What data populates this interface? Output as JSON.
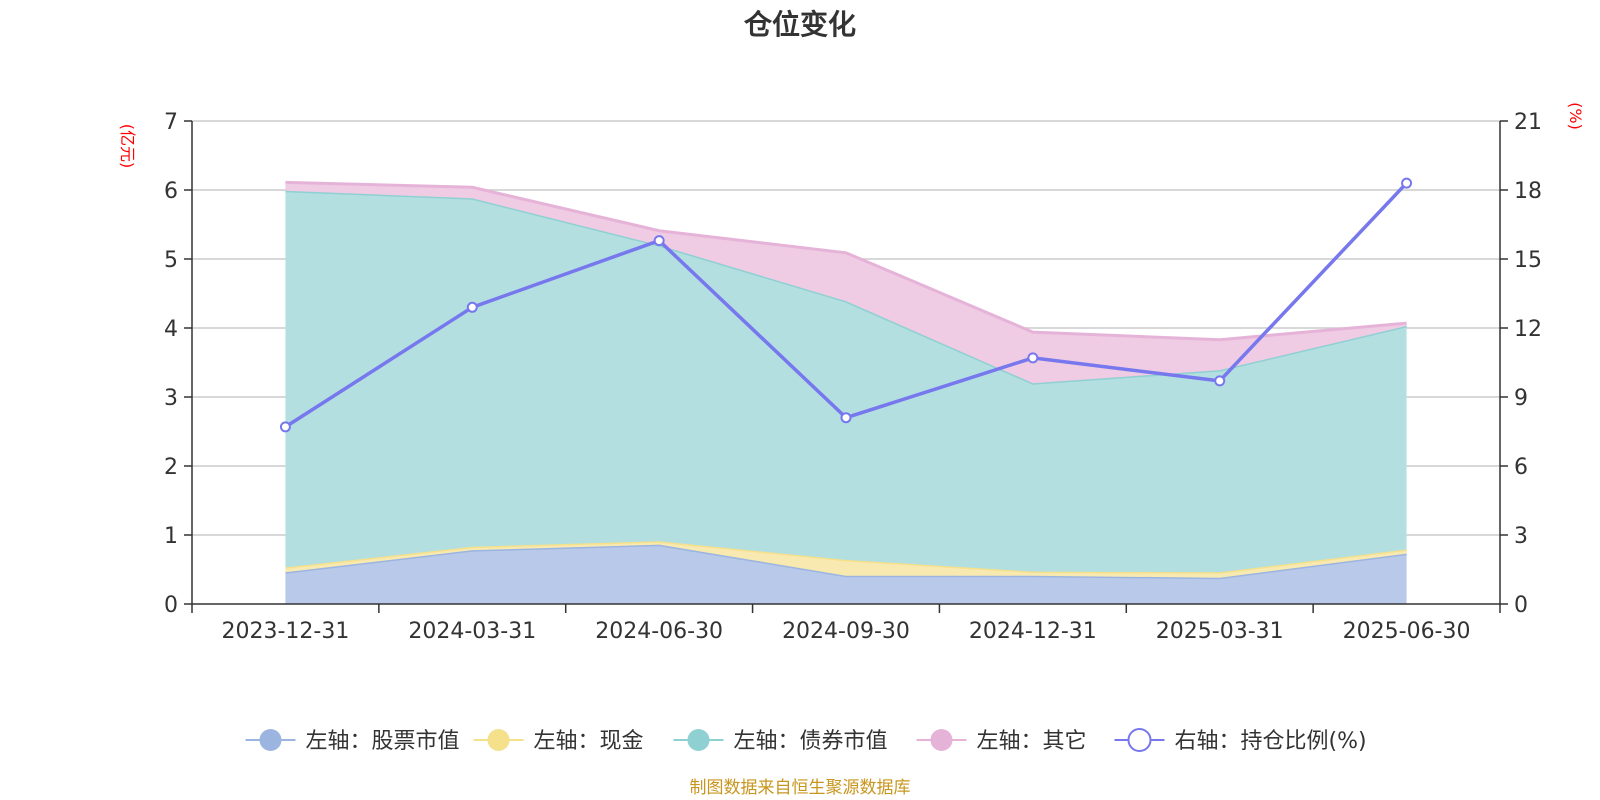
{
  "chart_data": {
    "type": "area",
    "title": "仓位变化",
    "left_axis_unit": "(亿元)",
    "right_axis_unit": "(%)",
    "categories": [
      "2023-12-31",
      "2024-03-31",
      "2024-06-30",
      "2024-09-30",
      "2024-12-31",
      "2025-03-31",
      "2025-06-30"
    ],
    "left_ylim": [
      0,
      7
    ],
    "left_yticks": [
      0,
      1,
      2,
      3,
      4,
      5,
      6,
      7
    ],
    "right_ylim": [
      0,
      21
    ],
    "right_yticks": [
      0,
      3,
      6,
      9,
      12,
      15,
      18,
      21
    ],
    "grid": true,
    "legend_position": "bottom",
    "stacked_series": [
      {
        "name": "左轴：股票市值",
        "color": "#9bb5e0",
        "fill": "#b8c9ea",
        "values": [
          0.46,
          0.78,
          0.86,
          0.41,
          0.41,
          0.38,
          0.73
        ]
      },
      {
        "name": "左轴：现金",
        "color": "#f5e08c",
        "fill": "#f8e9b0",
        "values": [
          0.07,
          0.05,
          0.05,
          0.23,
          0.06,
          0.08,
          0.06
        ]
      },
      {
        "name": "左轴：债券市值",
        "color": "#8fd0d2",
        "fill": "#b3dfe1",
        "values": [
          5.46,
          5.05,
          4.29,
          3.75,
          2.73,
          2.93,
          3.24
        ]
      },
      {
        "name": "左轴：其它",
        "color": "#e6b3d8",
        "fill": "#efcbe4",
        "values": [
          0.12,
          0.16,
          0.21,
          0.7,
          0.74,
          0.44,
          0.04
        ]
      }
    ],
    "line_series": {
      "name": "右轴：持仓比例(%)",
      "color": "#7777ee",
      "axis": "right",
      "values": [
        7.7,
        12.9,
        15.8,
        8.1,
        10.7,
        9.7,
        18.3
      ]
    }
  },
  "source_note": "制图数据来自恒生聚源数据库"
}
